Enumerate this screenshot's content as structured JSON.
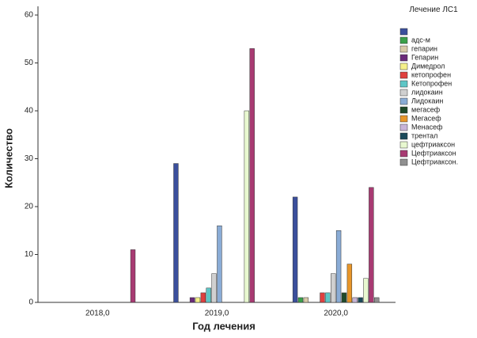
{
  "chart_data": {
    "type": "bar",
    "x_label": "Год лечения",
    "y_label": "Количество",
    "legend_title": "Лечение ЛС1",
    "categories": [
      "2018,0",
      "2019,0",
      "2020,0"
    ],
    "ylim": [
      0,
      60
    ],
    "yticks": [
      0,
      10,
      20,
      30,
      40,
      50,
      60
    ],
    "series": [
      {
        "name": null,
        "color": "#3b4f9c",
        "values": [
          null,
          29,
          22
        ]
      },
      {
        "name": "адс-м",
        "color": "#3aa04a",
        "values": [
          null,
          null,
          1
        ]
      },
      {
        "name": "гепарин",
        "color": "#d8c9a8",
        "values": [
          null,
          null,
          1
        ]
      },
      {
        "name": "Гепарин",
        "color": "#6a2a7a",
        "values": [
          null,
          1,
          null
        ]
      },
      {
        "name": "Димедрол",
        "color": "#f5f08a",
        "values": [
          null,
          1,
          null
        ]
      },
      {
        "name": "кетопрофен",
        "color": "#e0403f",
        "values": [
          null,
          2,
          2
        ]
      },
      {
        "name": "Кетопрофен",
        "color": "#5ec6c6",
        "values": [
          null,
          3,
          2
        ]
      },
      {
        "name": "лидокаин",
        "color": "#d0d0d0",
        "values": [
          null,
          6,
          6
        ]
      },
      {
        "name": "Лидокаин",
        "color": "#8aacd6",
        "values": [
          null,
          16,
          15
        ]
      },
      {
        "name": "мегасеф",
        "color": "#1f4a2a",
        "values": [
          null,
          null,
          2
        ]
      },
      {
        "name": "Мегасеф",
        "color": "#e8962a",
        "values": [
          null,
          null,
          8
        ]
      },
      {
        "name": "Менасеф",
        "color": "#c8b4d8",
        "values": [
          null,
          null,
          1
        ]
      },
      {
        "name": "трентал",
        "color": "#1a4a5a",
        "values": [
          null,
          null,
          1
        ]
      },
      {
        "name": "цефтриаксон",
        "color": "#e8f8d0",
        "values": [
          null,
          40,
          5
        ]
      },
      {
        "name": "Цефтриаксон",
        "color": "#a83a72",
        "values": [
          11,
          53,
          24
        ]
      },
      {
        "name": "Цефтриаксон.",
        "color": "#909090",
        "values": [
          null,
          null,
          1
        ]
      }
    ]
  }
}
